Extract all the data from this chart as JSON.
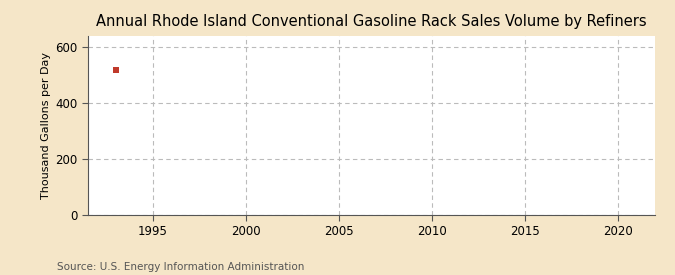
{
  "title": "Annual Rhode Island Conventional Gasoline Rack Sales Volume by Refiners",
  "ylabel": "Thousand Gallons per Day",
  "source_text": "Source: U.S. Energy Information Administration",
  "background_color": "#f5e6c8",
  "plot_background_color": "#ffffff",
  "data_x": [
    1993
  ],
  "data_y": [
    519
  ],
  "data_color": "#c0392b",
  "xlim": [
    1991.5,
    2022
  ],
  "ylim": [
    0,
    640
  ],
  "yticks": [
    0,
    200,
    400,
    600
  ],
  "xticks": [
    1995,
    2000,
    2005,
    2010,
    2015,
    2020
  ],
  "grid_color": "#bbbbbb",
  "title_fontsize": 10.5,
  "label_fontsize": 8,
  "tick_fontsize": 8.5,
  "source_fontsize": 7.5,
  "marker_size": 4
}
